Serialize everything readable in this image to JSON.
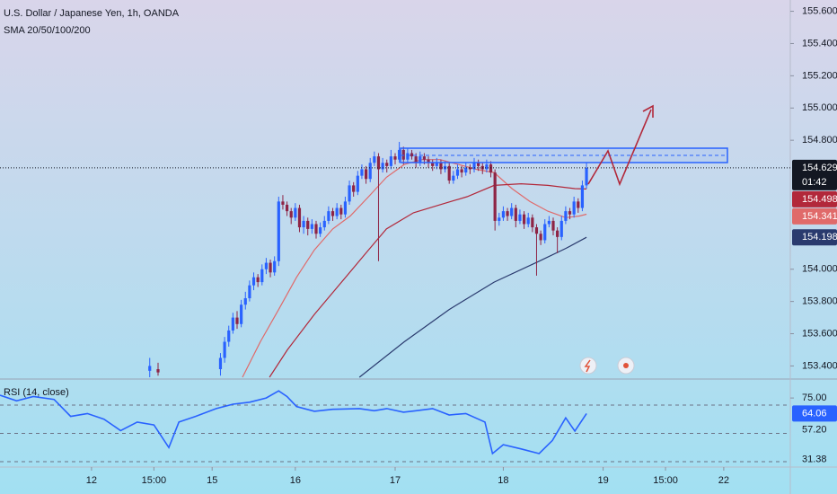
{
  "chart_data": {
    "type": "candlestick",
    "title": "U.S. Dollar / Japanese Yen, 1h, OANDA",
    "subtitle": "SMA 20/50/100/200",
    "up_color": "#2962ff",
    "down_color": "#8e2445",
    "x": [
      36,
      38,
      53,
      54,
      55,
      56,
      57,
      58,
      59,
      60,
      61,
      62,
      63,
      64,
      65,
      66,
      67,
      68,
      69,
      70,
      71,
      72,
      73,
      74,
      75,
      76,
      77,
      78,
      79,
      80,
      81,
      82,
      83,
      84,
      85,
      86,
      87,
      88,
      89,
      90,
      91,
      92,
      93,
      94,
      95,
      96,
      97,
      98,
      99,
      100,
      101,
      102,
      103,
      104,
      105,
      106,
      107,
      108,
      109,
      110,
      111,
      112,
      113,
      114,
      115,
      116,
      117,
      118,
      119,
      120,
      121,
      122,
      123,
      124,
      125,
      126,
      127,
      128,
      129,
      130,
      131,
      132,
      133,
      134,
      135,
      136,
      137,
      138,
      139,
      140,
      141
    ],
    "open": [
      153.37,
      153.38,
      153.38,
      153.45,
      153.55,
      153.62,
      153.7,
      153.66,
      153.78,
      153.82,
      153.9,
      153.95,
      153.92,
      154.0,
      154.04,
      153.98,
      154.05,
      154.42,
      154.4,
      154.36,
      154.32,
      154.38,
      154.26,
      154.3,
      154.25,
      154.28,
      154.22,
      154.26,
      154.3,
      154.36,
      154.33,
      154.38,
      154.34,
      154.42,
      154.52,
      154.48,
      154.58,
      154.62,
      154.56,
      154.66,
      154.7,
      154.62,
      154.66,
      154.64,
      154.7,
      154.68,
      154.74,
      154.68,
      154.72,
      154.7,
      154.66,
      154.7,
      154.68,
      154.66,
      154.64,
      154.66,
      154.62,
      154.64,
      154.55,
      154.58,
      154.62,
      154.6,
      154.63,
      154.62,
      154.66,
      154.64,
      154.62,
      154.65,
      154.6,
      154.3,
      154.32,
      154.36,
      154.33,
      154.38,
      154.3,
      154.34,
      154.28,
      154.32,
      154.26,
      154.22,
      154.18,
      154.28,
      154.3,
      154.24,
      154.2,
      154.3,
      154.36,
      154.34,
      154.42,
      154.38,
      154.52
    ],
    "high": [
      153.45,
      153.42,
      153.48,
      153.58,
      153.65,
      153.73,
      153.74,
      153.81,
      153.86,
      153.93,
      153.98,
      153.97,
      154.03,
      154.07,
      154.06,
      154.08,
      154.45,
      154.46,
      154.42,
      154.38,
      154.41,
      154.4,
      154.33,
      154.32,
      154.31,
      154.3,
      154.29,
      154.33,
      154.39,
      154.38,
      154.41,
      154.4,
      154.45,
      154.55,
      154.54,
      154.61,
      154.65,
      154.64,
      154.69,
      154.73,
      154.72,
      154.69,
      154.68,
      154.74,
      154.72,
      154.79,
      154.76,
      154.75,
      154.74,
      154.72,
      154.73,
      154.72,
      154.7,
      154.68,
      154.69,
      154.68,
      154.67,
      154.66,
      154.61,
      154.65,
      154.64,
      154.66,
      154.65,
      154.69,
      154.68,
      154.66,
      154.68,
      154.67,
      154.62,
      154.35,
      154.39,
      154.38,
      154.41,
      154.4,
      154.37,
      154.36,
      154.35,
      154.34,
      154.28,
      154.24,
      154.31,
      154.33,
      154.32,
      154.26,
      154.33,
      154.39,
      154.38,
      154.45,
      154.44,
      154.55,
      154.66
    ],
    "low": [
      153.33,
      153.34,
      153.34,
      153.42,
      153.52,
      153.6,
      153.63,
      153.64,
      153.75,
      153.8,
      153.87,
      153.89,
      153.9,
      153.97,
      153.95,
      153.96,
      154.02,
      154.37,
      154.33,
      154.28,
      154.3,
      154.23,
      154.22,
      154.21,
      154.22,
      154.19,
      154.2,
      154.24,
      154.28,
      154.3,
      154.31,
      154.31,
      154.32,
      154.4,
      154.45,
      154.46,
      154.56,
      154.53,
      154.54,
      154.64,
      154.05,
      154.6,
      154.6,
      154.62,
      154.65,
      154.66,
      154.65,
      154.66,
      154.68,
      154.63,
      154.64,
      154.65,
      154.63,
      154.61,
      154.62,
      154.59,
      154.6,
      154.53,
      154.53,
      154.56,
      154.57,
      154.58,
      154.59,
      154.6,
      154.61,
      154.59,
      154.6,
      154.57,
      154.24,
      154.27,
      154.3,
      154.3,
      154.31,
      154.26,
      154.28,
      154.25,
      154.26,
      154.23,
      153.96,
      154.15,
      154.16,
      154.26,
      154.21,
      154.1,
      154.18,
      154.28,
      154.31,
      154.32,
      154.35,
      154.36,
      154.5
    ],
    "close": [
      153.4,
      153.36,
      153.45,
      153.55,
      153.62,
      153.7,
      153.66,
      153.78,
      153.82,
      153.9,
      153.95,
      153.92,
      154.0,
      154.04,
      153.98,
      154.05,
      154.42,
      154.4,
      154.36,
      154.32,
      154.38,
      154.26,
      154.3,
      154.25,
      154.28,
      154.22,
      154.26,
      154.3,
      154.36,
      154.33,
      154.38,
      154.34,
      154.42,
      154.52,
      154.48,
      154.58,
      154.62,
      154.56,
      154.66,
      154.7,
      154.62,
      154.66,
      154.64,
      154.7,
      154.68,
      154.74,
      154.68,
      154.72,
      154.7,
      154.66,
      154.7,
      154.68,
      154.66,
      154.64,
      154.66,
      154.62,
      154.64,
      154.55,
      154.58,
      154.62,
      154.6,
      154.63,
      154.62,
      154.66,
      154.64,
      154.62,
      154.65,
      154.6,
      154.3,
      154.32,
      154.36,
      154.33,
      154.38,
      154.3,
      154.34,
      154.28,
      154.32,
      154.26,
      154.22,
      154.18,
      154.28,
      154.3,
      154.24,
      154.2,
      154.3,
      154.36,
      154.34,
      154.42,
      154.38,
      154.52,
      154.629
    ],
    "countdown": "01:42",
    "xlim": [
      0,
      190
    ],
    "xticks": [
      {
        "value": 22,
        "label": "12"
      },
      {
        "value": 37,
        "label": "15:00"
      },
      {
        "value": 51,
        "label": "15"
      },
      {
        "value": 71,
        "label": "16"
      },
      {
        "value": 95,
        "label": "17"
      },
      {
        "value": 121,
        "label": "18"
      },
      {
        "value": 145,
        "label": "19"
      },
      {
        "value": 160,
        "label": "15:00"
      },
      {
        "value": 174,
        "label": "22"
      }
    ],
    "ylim": [
      153.33,
      155.67
    ],
    "yticks": [
      {
        "value": 155.6,
        "label": "155.600"
      },
      {
        "value": 155.4,
        "label": "155.400"
      },
      {
        "value": 155.2,
        "label": "155.200"
      },
      {
        "value": 155.0,
        "label": "155.000"
      },
      {
        "value": 154.8,
        "label": "154.800"
      },
      {
        "value": 154.0,
        "label": "154.000"
      },
      {
        "value": 153.8,
        "label": "153.800"
      },
      {
        "value": 153.6,
        "label": "153.600"
      },
      {
        "value": 153.4,
        "label": "153.400"
      }
    ],
    "sma": [
      {
        "color": "#e06a6a",
        "x": [
          58.3,
          62.6,
          67,
          71.3,
          75.6,
          80,
          84.2,
          88.6,
          92.9,
          97.2,
          101.5,
          105.8,
          110.2,
          114.5,
          118.8,
          123.1,
          127.4,
          131.7,
          136,
          139.3,
          141
        ],
        "values": [
          153.33,
          153.55,
          153.75,
          153.95,
          154.12,
          154.25,
          154.33,
          154.45,
          154.57,
          154.65,
          154.68,
          154.68,
          154.65,
          154.62,
          154.6,
          154.5,
          154.42,
          154.36,
          154.32,
          154.33,
          154.341
        ]
      },
      {
        "color": "#b2283a",
        "x": [
          64.8,
          69.1,
          75.6,
          82.1,
          88.6,
          92.9,
          99.4,
          105.8,
          112.3,
          118.8,
          125.3,
          131.7,
          138.2,
          141
        ],
        "values": [
          153.33,
          153.5,
          153.72,
          153.92,
          154.12,
          154.25,
          154.35,
          154.4,
          154.45,
          154.52,
          154.53,
          154.52,
          154.5,
          154.498
        ]
      },
      {
        "color": "#2a3a6e",
        "x": [
          86.4,
          97.2,
          108,
          118.8,
          129.6,
          136.1,
          141
        ],
        "values": [
          153.33,
          153.55,
          153.75,
          153.92,
          154.05,
          154.13,
          154.198
        ]
      }
    ],
    "rsi": {
      "title": "RSI (14, close)",
      "color": "#2962ff",
      "x": [
        0,
        4,
        8,
        13,
        17,
        21,
        25,
        29,
        33,
        37,
        40.6,
        43,
        47,
        52,
        56,
        60,
        64,
        67,
        69,
        71.3,
        75.6,
        80,
        86.4,
        90,
        93,
        97,
        100,
        104,
        108,
        112,
        116.6,
        118.4,
        121,
        125.3,
        129.6,
        132.8,
        136,
        138.2,
        141
      ],
      "values": [
        77,
        73,
        76,
        74,
        62,
        64,
        60,
        52,
        58,
        56,
        40,
        58,
        62,
        67.5,
        70.6,
        72,
        75,
        80,
        76,
        69,
        65.6,
        67,
        67.5,
        66,
        67.5,
        65,
        66,
        67.5,
        63,
        64,
        58,
        35.7,
        42,
        39,
        35.7,
        45,
        61,
        51.6,
        64.06
      ],
      "ylim": [
        26.2,
        86.5
      ],
      "yticks": [
        {
          "value": 75,
          "label": "75.00"
        }
      ],
      "bands": [
        70,
        50,
        30
      ],
      "markers": [
        {
          "value": 57.2,
          "label": "57.20"
        },
        31.38
      ]
    }
  }
}
